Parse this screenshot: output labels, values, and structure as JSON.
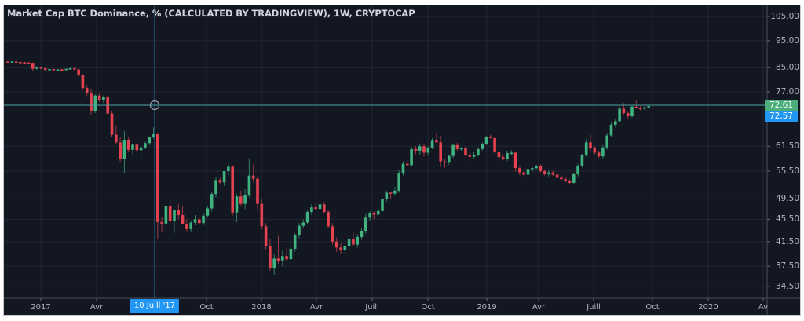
{
  "chart": {
    "title": "Market Cap BTC Dominance, % (CALCULATED BY TRADINGVIEW), 1W, CRYPTOCAP",
    "colors": {
      "background": "#131722",
      "grid": "#232734",
      "up": "#26a69a",
      "up_body": "#3fb27f",
      "down": "#ef5350",
      "down_body": "#e5424f",
      "last_price_badge": "#4cae7a",
      "crosshair_badge": "#2196f3",
      "last_price_line": "#4aa3a3",
      "crosshair": "#2a6f9b"
    },
    "price_axis": {
      "labels": [
        "105.00",
        "95.00",
        "85.00",
        "77.00",
        "61.50",
        "55.50",
        "49.50",
        "45.50",
        "41.50",
        "37.50",
        "34.50"
      ],
      "last_price": "72.61",
      "crosshair_price": "72.57"
    },
    "time_axis": {
      "labels": [
        "2017",
        "Avr",
        "Oct",
        "2018",
        "Avr",
        "Juill",
        "Oct",
        "2019",
        "Avr",
        "Juill",
        "Oct",
        "2020",
        "Av"
      ],
      "crosshair_date": "10 Juill '17"
    }
  },
  "chart_data": {
    "type": "candlestick",
    "title": "Market Cap BTC Dominance, % (CALCULATED BY TRADINGVIEW), 1W, CRYPTOCAP",
    "xlabel": "",
    "ylabel": "%",
    "scale": "log",
    "ylim": [
      33.5,
      108
    ],
    "grid": true,
    "y_ticks": [
      105.0,
      95.0,
      85.0,
      77.0,
      61.5,
      55.5,
      49.5,
      45.5,
      41.5,
      37.5,
      34.5
    ],
    "x_ticks": [
      "2017",
      "Avr",
      "Oct",
      "2018",
      "Avr",
      "Juill",
      "Oct",
      "2019",
      "Avr",
      "Juill",
      "Oct",
      "2020",
      "Av"
    ],
    "last_value": 72.61,
    "crosshair": {
      "date": "10 Juill '17",
      "value": 72.57
    },
    "interval": "1W",
    "candles_ohlc": [
      [
        87.2,
        87.4,
        86.8,
        87.1
      ],
      [
        87.1,
        87.3,
        86.8,
        87.2
      ],
      [
        87.2,
        87.4,
        86.9,
        87.0
      ],
      [
        87.0,
        87.2,
        86.6,
        86.9
      ],
      [
        86.9,
        87.1,
        86.5,
        86.8
      ],
      [
        86.8,
        87.0,
        86.5,
        86.7
      ],
      [
        86.7,
        86.8,
        84.0,
        84.6
      ],
      [
        84.6,
        85.4,
        84.3,
        85.1
      ],
      [
        85.1,
        85.3,
        84.5,
        84.8
      ],
      [
        84.8,
        85.0,
        84.0,
        84.3
      ],
      [
        84.3,
        84.6,
        84.0,
        84.5
      ],
      [
        84.5,
        84.7,
        84.0,
        84.2
      ],
      [
        84.2,
        84.5,
        83.9,
        84.4
      ],
      [
        84.4,
        84.6,
        84.0,
        84.3
      ],
      [
        84.3,
        84.7,
        84.0,
        84.6
      ],
      [
        84.6,
        85.0,
        84.3,
        84.8
      ],
      [
        84.8,
        85.1,
        84.2,
        84.4
      ],
      [
        84.4,
        84.6,
        82.0,
        82.4
      ],
      [
        82.4,
        82.7,
        77.5,
        78.2
      ],
      [
        78.2,
        79.2,
        75.6,
        76.5
      ],
      [
        76.5,
        77.8,
        70.0,
        71.0
      ],
      [
        71.0,
        76.2,
        70.5,
        75.8
      ],
      [
        75.8,
        76.5,
        73.8,
        74.3
      ],
      [
        74.3,
        75.9,
        73.5,
        75.4
      ],
      [
        75.4,
        75.8,
        69.8,
        70.4
      ],
      [
        70.4,
        71.0,
        63.8,
        64.5
      ],
      [
        64.5,
        67.0,
        62.0,
        62.5
      ],
      [
        62.5,
        64.0,
        57.5,
        58.3
      ],
      [
        58.3,
        65.5,
        55.0,
        63.0
      ],
      [
        63.0,
        64.0,
        60.0,
        60.6
      ],
      [
        60.6,
        62.2,
        59.4,
        61.9
      ],
      [
        61.9,
        62.4,
        60.0,
        60.5
      ],
      [
        60.5,
        61.6,
        58.6,
        61.2
      ],
      [
        61.2,
        62.7,
        60.8,
        62.3
      ],
      [
        62.3,
        63.9,
        61.8,
        63.8
      ],
      [
        63.8,
        66.5,
        63.5,
        64.6
      ],
      [
        64.6,
        64.8,
        42.0,
        45.0
      ],
      [
        45.0,
        46.0,
        43.2,
        44.7
      ],
      [
        44.7,
        48.5,
        44.0,
        48.0
      ],
      [
        48.0,
        49.2,
        44.5,
        45.2
      ],
      [
        45.2,
        47.5,
        43.0,
        47.2
      ],
      [
        47.2,
        48.5,
        45.5,
        46.3
      ],
      [
        46.3,
        48.2,
        44.5,
        44.6
      ],
      [
        44.6,
        45.5,
        43.3,
        43.7
      ],
      [
        43.7,
        45.3,
        43.2,
        44.9
      ],
      [
        44.9,
        46.3,
        44.4,
        45.5
      ],
      [
        45.5,
        45.9,
        44.6,
        44.8
      ],
      [
        44.8,
        46.6,
        44.4,
        46.2
      ],
      [
        46.2,
        48.0,
        45.8,
        47.6
      ],
      [
        47.6,
        51.0,
        47.0,
        50.5
      ],
      [
        50.5,
        54.2,
        49.8,
        53.5
      ],
      [
        53.5,
        54.0,
        52.5,
        53.0
      ],
      [
        53.0,
        55.5,
        52.2,
        55.5
      ],
      [
        55.5,
        57.2,
        54.5,
        56.5
      ],
      [
        56.5,
        56.9,
        46.2,
        46.8
      ],
      [
        46.8,
        50.5,
        45.0,
        50.0
      ],
      [
        50.0,
        51.2,
        48.0,
        48.5
      ],
      [
        48.5,
        51.5,
        47.5,
        50.3
      ],
      [
        50.3,
        58.5,
        49.8,
        54.5
      ],
      [
        54.5,
        57.0,
        53.0,
        53.8
      ],
      [
        53.8,
        54.2,
        47.5,
        48.5
      ],
      [
        48.5,
        49.5,
        43.6,
        44.2
      ],
      [
        44.2,
        44.8,
        40.2,
        40.8
      ],
      [
        40.8,
        42.0,
        36.8,
        37.2
      ],
      [
        37.2,
        39.5,
        36.2,
        38.7
      ],
      [
        38.7,
        42.5,
        37.8,
        38.4
      ],
      [
        38.4,
        40.0,
        37.5,
        39.1
      ],
      [
        39.1,
        40.5,
        38.3,
        38.6
      ],
      [
        38.6,
        41.5,
        38.0,
        40.3
      ],
      [
        40.3,
        43.0,
        39.8,
        42.6
      ],
      [
        42.6,
        44.8,
        42.1,
        44.3
      ],
      [
        44.3,
        45.5,
        43.8,
        44.9
      ],
      [
        44.9,
        47.2,
        44.5,
        46.9
      ],
      [
        46.9,
        48.5,
        46.3,
        47.8
      ],
      [
        47.8,
        48.8,
        47.3,
        47.5
      ],
      [
        47.5,
        49.0,
        46.5,
        48.4
      ],
      [
        48.4,
        48.7,
        46.5,
        46.9
      ],
      [
        46.9,
        47.2,
        43.8,
        44.2
      ],
      [
        44.2,
        44.8,
        41.0,
        41.5
      ],
      [
        41.5,
        42.2,
        39.8,
        40.5
      ],
      [
        40.5,
        41.2,
        39.4,
        40.1
      ],
      [
        40.1,
        41.5,
        39.6,
        40.8
      ],
      [
        40.8,
        42.6,
        40.3,
        42.0
      ],
      [
        42.0,
        43.2,
        40.7,
        41.0
      ],
      [
        41.0,
        42.8,
        40.5,
        42.3
      ],
      [
        42.3,
        43.8,
        41.8,
        43.4
      ],
      [
        43.4,
        46.5,
        42.9,
        45.8
      ],
      [
        45.8,
        47.0,
        45.2,
        46.6
      ],
      [
        46.6,
        47.0,
        45.5,
        46.4
      ],
      [
        46.4,
        47.8,
        46.0,
        47.1
      ],
      [
        47.1,
        49.5,
        46.9,
        49.4
      ],
      [
        49.4,
        51.2,
        48.8,
        50.8
      ],
      [
        50.8,
        51.0,
        49.5,
        50.6
      ],
      [
        50.6,
        52.0,
        50.1,
        51.2
      ],
      [
        51.2,
        55.8,
        50.8,
        55.1
      ],
      [
        55.1,
        57.8,
        54.5,
        57.2
      ],
      [
        57.2,
        58.0,
        56.8,
        56.9
      ],
      [
        56.9,
        61.3,
        56.5,
        60.8
      ],
      [
        60.8,
        61.6,
        59.5,
        60.2
      ],
      [
        60.2,
        62.2,
        59.3,
        61.5
      ],
      [
        61.5,
        62.0,
        59.0,
        59.9
      ],
      [
        59.9,
        61.5,
        59.3,
        61.1
      ],
      [
        61.1,
        63.6,
        60.8,
        62.9
      ],
      [
        62.9,
        64.8,
        62.5,
        62.5
      ],
      [
        62.5,
        64.2,
        56.5,
        57.8
      ],
      [
        57.8,
        58.3,
        56.3,
        57.5
      ],
      [
        57.5,
        59.5,
        57.0,
        59.1
      ],
      [
        59.1,
        62.2,
        58.6,
        61.8
      ],
      [
        61.8,
        62.4,
        60.3,
        60.8
      ],
      [
        60.8,
        61.3,
        60.4,
        61.0
      ],
      [
        61.0,
        61.5,
        59.0,
        59.4
      ],
      [
        59.4,
        60.2,
        57.8,
        58.9
      ],
      [
        58.9,
        60.0,
        58.5,
        59.4
      ],
      [
        59.4,
        61.1,
        59.0,
        60.8
      ],
      [
        60.8,
        62.5,
        60.4,
        62.1
      ],
      [
        62.1,
        64.2,
        61.8,
        63.9
      ],
      [
        63.9,
        64.5,
        63.5,
        63.6
      ],
      [
        63.6,
        63.8,
        59.6,
        60.0
      ],
      [
        60.0,
        60.5,
        58.2,
        58.8
      ],
      [
        58.8,
        59.3,
        58.0,
        58.4
      ],
      [
        58.4,
        60.3,
        57.9,
        59.8
      ],
      [
        59.8,
        60.5,
        59.2,
        59.9
      ],
      [
        59.9,
        60.0,
        55.4,
        56.2
      ],
      [
        56.2,
        56.8,
        54.6,
        55.2
      ],
      [
        55.2,
        55.6,
        54.2,
        54.7
      ],
      [
        54.7,
        56.4,
        54.3,
        56.0
      ],
      [
        56.0,
        56.5,
        55.4,
        56.2
      ],
      [
        56.2,
        57.0,
        55.7,
        56.6
      ],
      [
        56.6,
        57.1,
        55.2,
        55.5
      ],
      [
        55.5,
        55.9,
        54.5,
        54.8
      ],
      [
        54.8,
        55.8,
        54.3,
        55.2
      ],
      [
        55.2,
        55.6,
        54.4,
        54.7
      ],
      [
        54.7,
        55.1,
        53.7,
        54.0
      ],
      [
        54.0,
        54.6,
        53.5,
        53.7
      ],
      [
        53.7,
        54.2,
        53.0,
        53.3
      ],
      [
        53.3,
        53.7,
        52.6,
        52.9
      ],
      [
        52.9,
        55.2,
        52.6,
        54.8
      ],
      [
        54.8,
        57.2,
        54.3,
        56.8
      ],
      [
        56.8,
        59.6,
        56.4,
        59.3
      ],
      [
        59.3,
        63.3,
        58.9,
        62.5
      ],
      [
        62.5,
        64.5,
        60.5,
        61.0
      ],
      [
        61.0,
        61.6,
        59.3,
        59.9
      ],
      [
        59.9,
        60.2,
        58.6,
        59.0
      ],
      [
        59.0,
        61.8,
        58.5,
        61.2
      ],
      [
        61.2,
        64.8,
        60.7,
        64.3
      ],
      [
        64.3,
        67.8,
        63.9,
        67.2
      ],
      [
        67.2,
        68.7,
        66.5,
        68.2
      ],
      [
        68.2,
        72.4,
        67.8,
        71.8
      ],
      [
        71.8,
        73.5,
        70.0,
        70.5
      ],
      [
        70.5,
        70.9,
        69.0,
        69.6
      ],
      [
        69.6,
        72.9,
        69.2,
        72.4
      ],
      [
        72.4,
        74.3,
        72.0,
        72.0
      ],
      [
        72.0,
        72.6,
        71.3,
        71.8
      ],
      [
        71.8,
        72.5,
        71.4,
        72.2
      ],
      [
        72.2,
        72.9,
        71.9,
        72.6
      ]
    ]
  }
}
